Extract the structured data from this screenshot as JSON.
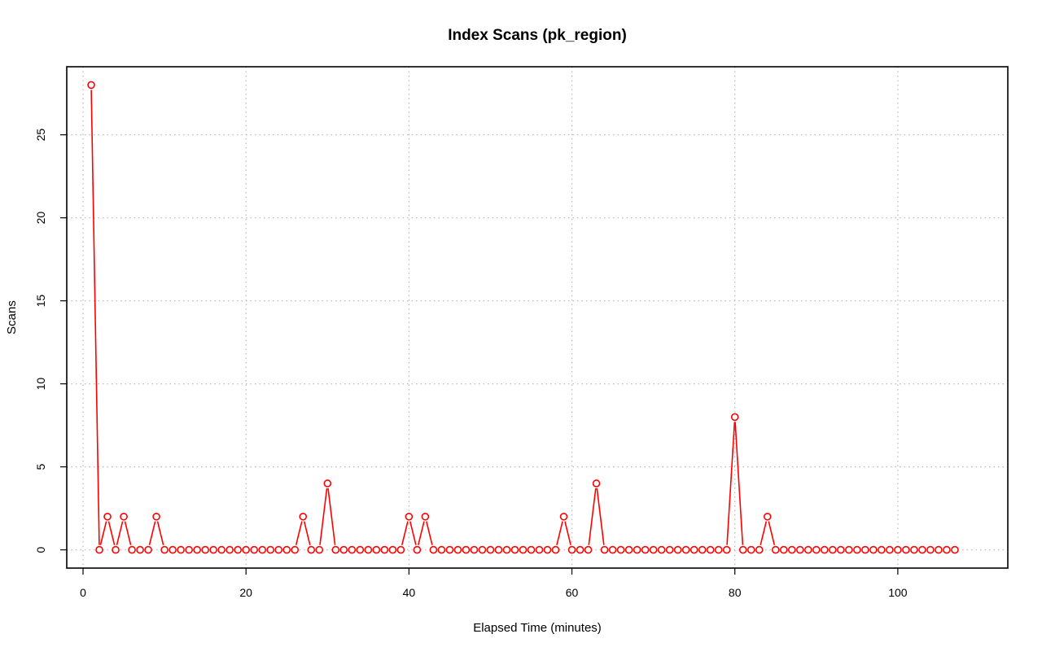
{
  "chart_data": {
    "type": "line",
    "title": "Index Scans (pk_region)",
    "xlabel": "Elapsed Time (minutes)",
    "ylabel": "Scans",
    "xlim": [
      -2,
      113.5
    ],
    "ylim": [
      -1.1,
      29.1
    ],
    "x_ticks": [
      0,
      20,
      40,
      60,
      80,
      100
    ],
    "y_ticks": [
      0,
      5,
      10,
      15,
      20,
      25
    ],
    "grid": true,
    "line_style": "lines with open circle markers",
    "series_color": "#ff0000",
    "x": [
      1,
      2,
      3,
      4,
      5,
      6,
      7,
      8,
      9,
      10,
      11,
      12,
      13,
      14,
      15,
      16,
      17,
      18,
      19,
      20,
      21,
      22,
      23,
      24,
      25,
      26,
      27,
      28,
      29,
      30,
      31,
      32,
      33,
      34,
      35,
      36,
      37,
      38,
      39,
      40,
      41,
      42,
      43,
      44,
      45,
      46,
      47,
      48,
      49,
      50,
      51,
      52,
      53,
      54,
      55,
      56,
      57,
      58,
      59,
      60,
      61,
      62,
      63,
      64,
      65,
      66,
      67,
      68,
      69,
      70,
      71,
      72,
      73,
      74,
      75,
      76,
      77,
      78,
      79,
      80,
      81,
      82,
      83,
      84,
      85,
      86,
      87,
      88,
      89,
      90,
      91,
      92,
      93,
      94,
      95,
      96,
      97,
      98,
      99,
      100,
      101,
      102,
      103,
      104,
      105,
      106,
      107
    ],
    "values": [
      28,
      0,
      2,
      0,
      2,
      0,
      0,
      0,
      2,
      0,
      0,
      0,
      0,
      0,
      0,
      0,
      0,
      0,
      0,
      0,
      0,
      0,
      0,
      0,
      0,
      0,
      2,
      0,
      0,
      4,
      0,
      0,
      0,
      0,
      0,
      0,
      0,
      0,
      0,
      2,
      0,
      2,
      0,
      0,
      0,
      0,
      0,
      0,
      0,
      0,
      0,
      0,
      0,
      0,
      0,
      0,
      0,
      0,
      2,
      0,
      0,
      0,
      4,
      0,
      0,
      0,
      0,
      0,
      0,
      0,
      0,
      0,
      0,
      0,
      0,
      0,
      0,
      0,
      0,
      8,
      0,
      0,
      0,
      2,
      0,
      0,
      0,
      0,
      0,
      0,
      0,
      0,
      0,
      0,
      0,
      0,
      0,
      0,
      0,
      0,
      0,
      0,
      0,
      0,
      0,
      0,
      0
    ]
  }
}
